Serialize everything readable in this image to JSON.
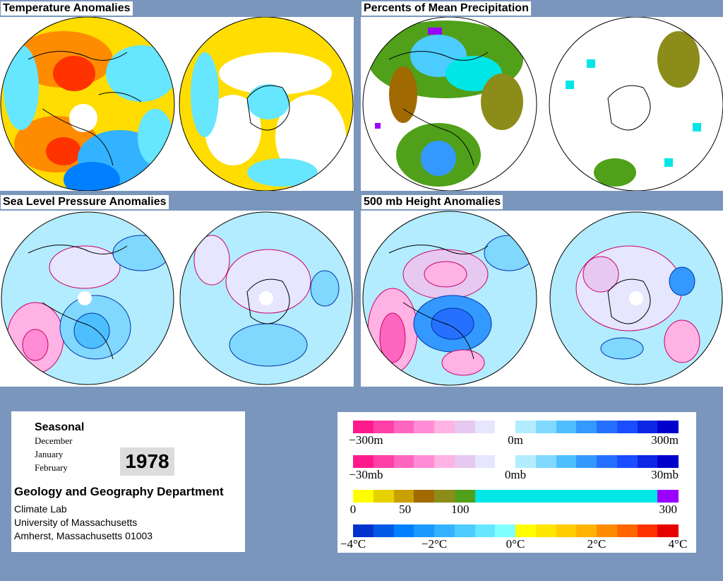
{
  "panels": [
    {
      "id": "temp",
      "title": "Temperature Anomalies"
    },
    {
      "id": "precip",
      "title": "Percents of Mean Precipitation"
    },
    {
      "id": "slp",
      "title": "Sea Level Pressure Anomalies"
    },
    {
      "id": "h500",
      "title": "500 mb Height Anomalies"
    }
  ],
  "info": {
    "season": "Seasonal",
    "months": [
      "December",
      "January",
      "February"
    ],
    "year": "1978",
    "department": "Geology and Geography Department",
    "address": [
      "Climate Lab",
      "University of Massachusetts",
      "Amherst, Massachusetts 01003"
    ]
  },
  "legends": [
    {
      "name": "height-scale",
      "labels": [
        {
          "text": "−300m",
          "pos": 0.04
        },
        {
          "text": "0m",
          "pos": 0.5
        },
        {
          "text": "300m",
          "pos": 0.96
        }
      ],
      "colors": [
        "#ff1a8c",
        "#ff40a8",
        "#ff66c0",
        "#ff8cd4",
        "#ffb3e4",
        "#e6c8f0",
        "#e6e6ff",
        "#ffffff",
        "#b3ecff",
        "#80d8ff",
        "#4dbfff",
        "#3399ff",
        "#2670ff",
        "#1a4dff",
        "#0d26e6",
        "#0000cc"
      ]
    },
    {
      "name": "pressure-scale",
      "labels": [
        {
          "text": "−30mb",
          "pos": 0.04
        },
        {
          "text": "0mb",
          "pos": 0.5
        },
        {
          "text": "30mb",
          "pos": 0.96
        }
      ],
      "colors": [
        "#ff1a8c",
        "#ff40a8",
        "#ff66c0",
        "#ff8cd4",
        "#ffb3e4",
        "#e6c8f0",
        "#e6e6ff",
        "#ffffff",
        "#b3ecff",
        "#80d8ff",
        "#4dbfff",
        "#3399ff",
        "#2670ff",
        "#1a4dff",
        "#0d26e6",
        "#0000cc"
      ]
    },
    {
      "name": "precip-scale",
      "labels": [
        {
          "text": "0",
          "pos": 0.0
        },
        {
          "text": "50",
          "pos": 0.16
        },
        {
          "text": "100",
          "pos": 0.33
        },
        {
          "text": "300",
          "pos": 0.97
        }
      ],
      "colors": [
        "#ffff00",
        "#e6d200",
        "#c8a000",
        "#a06a00",
        "#8c8c1a",
        "#50a01a",
        "#00e6e6",
        "#00e6e6",
        "#00e6e6",
        "#00e6e6",
        "#00e6e6",
        "#00e6e6",
        "#00e6e6",
        "#00e6e6",
        "#00e6e6",
        "#9900ff"
      ]
    },
    {
      "name": "temperature-scale",
      "labels": [
        {
          "text": "−4°C",
          "pos": 0.0
        },
        {
          "text": "−2°C",
          "pos": 0.25
        },
        {
          "text": "0°C",
          "pos": 0.5
        },
        {
          "text": "2°C",
          "pos": 0.75
        },
        {
          "text": "4°C",
          "pos": 1.0
        }
      ],
      "colors": [
        "#0033cc",
        "#0059e6",
        "#0080ff",
        "#1a99ff",
        "#33b3ff",
        "#4dccff",
        "#66e6ff",
        "#80ffff",
        "#ffff00",
        "#ffe600",
        "#ffcc00",
        "#ffb300",
        "#ff8c00",
        "#ff6600",
        "#ff3300",
        "#e60000"
      ]
    }
  ],
  "colors": {
    "background": "#7a96bc",
    "warm": "#ff8c00",
    "cool": "#33b3ff",
    "land_line": "#000000",
    "contour_pos": "#cc0066",
    "contour_neg": "#0033aa"
  }
}
